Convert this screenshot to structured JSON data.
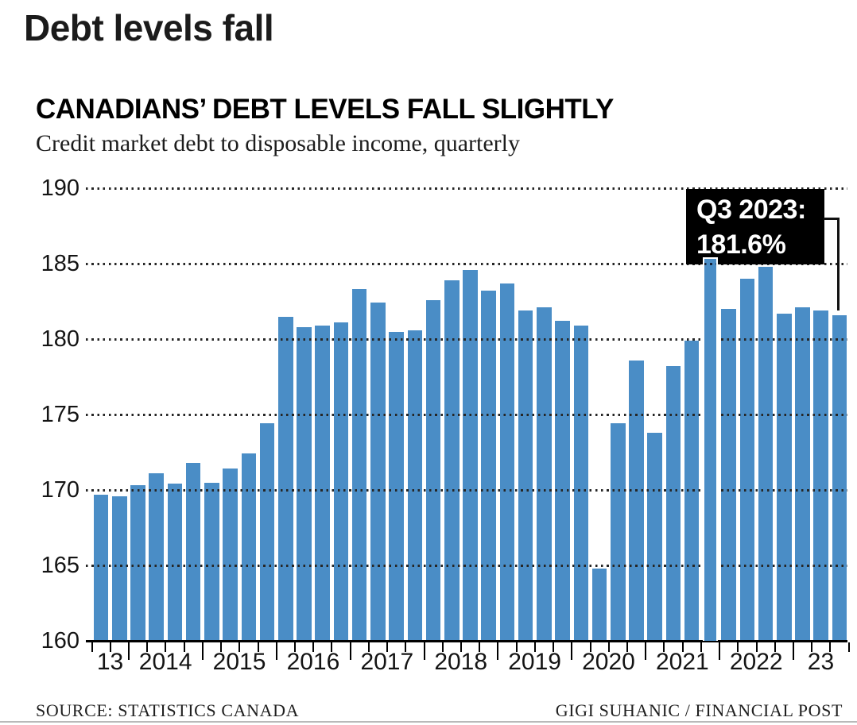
{
  "page": {
    "title": "Debt levels fall"
  },
  "chart": {
    "title": "CANADIANS’ DEBT LEVELS FALL SLIGHTLY",
    "subtitle": "Credit market debt to disposable income, quarterly",
    "annotation": {
      "line1": "Q3 2023:",
      "line2": "181.6%"
    },
    "footer": {
      "source": "SOURCE: STATISTICS CANADA",
      "credit": "GIGI SUHANIC / FINANCIAL POST"
    },
    "colors": {
      "bar": "#4a8dc6",
      "annotation_bg": "#000000",
      "annotation_text": "#ffffff",
      "grid_dots": "#262626"
    }
  },
  "chart_data": {
    "type": "bar",
    "title": "CANADIANS’ DEBT LEVELS FALL SLIGHTLY",
    "subtitle": "Credit market debt to disposable income, quarterly",
    "unit": "%",
    "ylim": [
      160,
      190
    ],
    "y_ticks": [
      190,
      185,
      180,
      175,
      170,
      165,
      160
    ],
    "grid": "horizontal-dotted",
    "legend": "none",
    "x_tick_labels": [
      "13",
      "2014",
      "2015",
      "2016",
      "2017",
      "2018",
      "2019",
      "2020",
      "2021",
      "2022",
      "23"
    ],
    "points": [
      {
        "q": "2013 Q3",
        "v": 169.7
      },
      {
        "q": "2013 Q4",
        "v": 169.6
      },
      {
        "q": "2014 Q1",
        "v": 170.3
      },
      {
        "q": "2014 Q2",
        "v": 171.1
      },
      {
        "q": "2014 Q3",
        "v": 170.4
      },
      {
        "q": "2014 Q4",
        "v": 171.8
      },
      {
        "q": "2015 Q1",
        "v": 170.5
      },
      {
        "q": "2015 Q2",
        "v": 171.4
      },
      {
        "q": "2015 Q3",
        "v": 172.4
      },
      {
        "q": "2015 Q4",
        "v": 174.4
      },
      {
        "q": "2016 Q1",
        "v": 181.5
      },
      {
        "q": "2016 Q2",
        "v": 180.8
      },
      {
        "q": "2016 Q3",
        "v": 180.9
      },
      {
        "q": "2016 Q4",
        "v": 181.1
      },
      {
        "q": "2017 Q1",
        "v": 183.3
      },
      {
        "q": "2017 Q2",
        "v": 182.4
      },
      {
        "q": "2017 Q3",
        "v": 180.5
      },
      {
        "q": "2017 Q4",
        "v": 180.6
      },
      {
        "q": "2018 Q1",
        "v": 182.6
      },
      {
        "q": "2018 Q2",
        "v": 183.9
      },
      {
        "q": "2018 Q3",
        "v": 184.6
      },
      {
        "q": "2018 Q4",
        "v": 183.2
      },
      {
        "q": "2019 Q1",
        "v": 183.7
      },
      {
        "q": "2019 Q2",
        "v": 181.9
      },
      {
        "q": "2019 Q3",
        "v": 182.1
      },
      {
        "q": "2019 Q4",
        "v": 181.2
      },
      {
        "q": "2020 Q1",
        "v": 180.9
      },
      {
        "q": "2020 Q2",
        "v": 164.8
      },
      {
        "q": "2020 Q3",
        "v": 174.4
      },
      {
        "q": "2020 Q4",
        "v": 178.6
      },
      {
        "q": "2021 Q1",
        "v": 173.8
      },
      {
        "q": "2021 Q2",
        "v": 178.2
      },
      {
        "q": "2021 Q3",
        "v": 179.9
      },
      {
        "q": "2021 Q4",
        "v": 185.4
      },
      {
        "q": "2022 Q1",
        "v": 182.0
      },
      {
        "q": "2022 Q2",
        "v": 184.0
      },
      {
        "q": "2022 Q3",
        "v": 184.8
      },
      {
        "q": "2022 Q4",
        "v": 181.7
      },
      {
        "q": "2023 Q1",
        "v": 182.1
      },
      {
        "q": "2023 Q2",
        "v": 181.9
      },
      {
        "q": "2023 Q3",
        "v": 181.6
      }
    ],
    "annotation": {
      "label": "Q3 2023: 181.6%",
      "quarter": "2023 Q3",
      "value": 181.6
    }
  }
}
